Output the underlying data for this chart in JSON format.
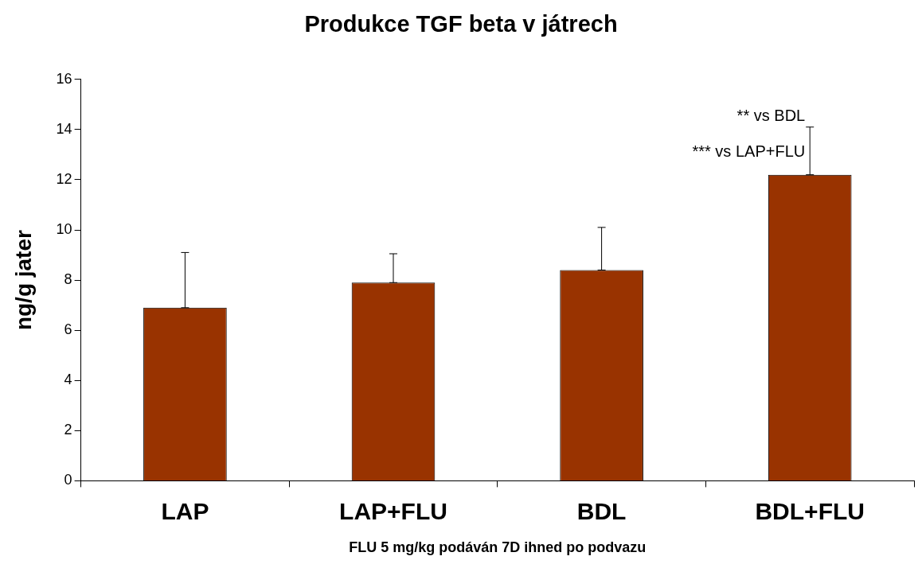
{
  "chart_data": {
    "type": "bar",
    "title": "Produkce TGF beta v játrech",
    "xlabel": "FLU 5 mg/kg podáván 7D ihned po podvazu",
    "ylabel": "ng/g jater",
    "categories": [
      "LAP",
      "LAP+FLU",
      "BDL",
      "BDL+FLU"
    ],
    "values": [
      6.9,
      7.9,
      8.4,
      12.2
    ],
    "color": "#993300",
    "errors": [
      [
        6.9,
        9.1
      ],
      [
        7.9,
        9.05
      ],
      [
        8.4,
        10.1
      ],
      [
        12.2,
        14.1
      ]
    ],
    "ylim": [
      0,
      16
    ],
    "yticks": [
      0,
      2,
      4,
      6,
      8,
      10,
      12,
      14,
      16
    ],
    "grid": false,
    "legend": false,
    "annotations": [
      "** vs BDL",
      "*** vs LAP+FLU"
    ]
  }
}
